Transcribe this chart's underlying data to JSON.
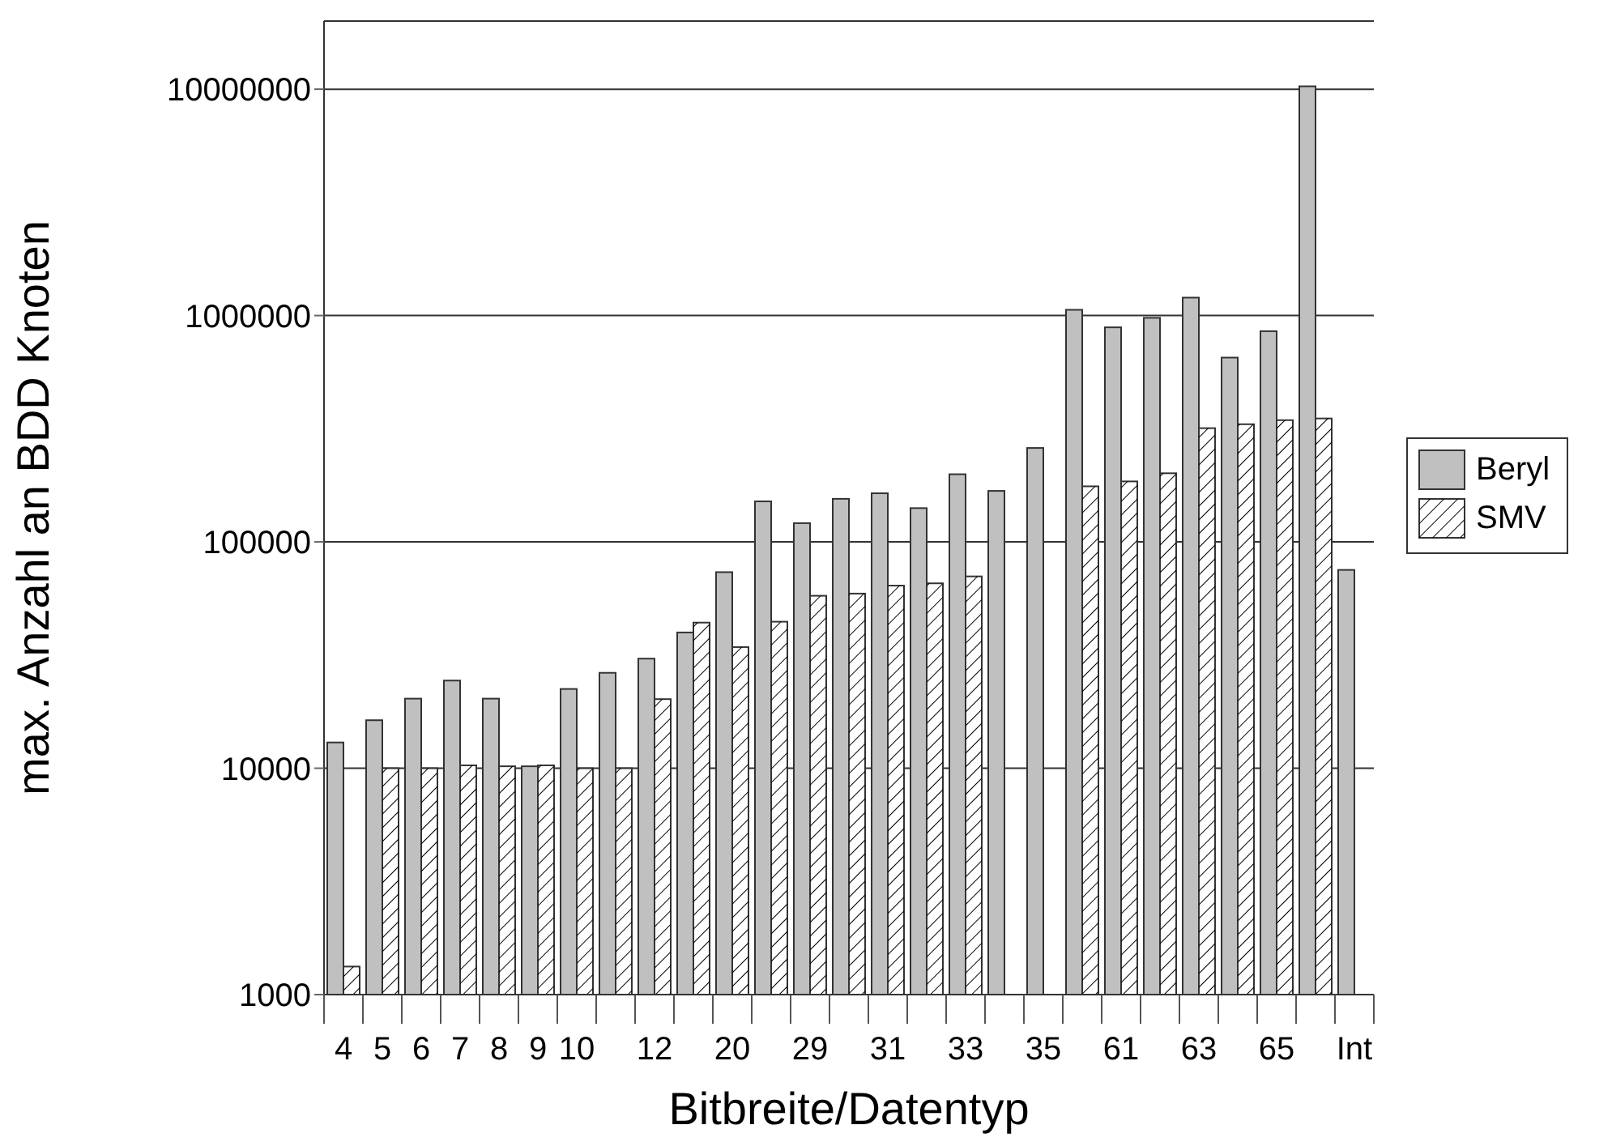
{
  "chart_data": {
    "type": "bar",
    "xlabel": "Bitbreite/Datentyp",
    "ylabel": "max. Anzahl an BDD Knoten",
    "categories": [
      "4",
      "5",
      "6",
      "7",
      "8",
      "9",
      "10",
      null,
      "12",
      null,
      "20",
      null,
      "29",
      null,
      "31",
      null,
      "33",
      null,
      "35",
      null,
      "61",
      null,
      "63",
      null,
      "65",
      null,
      "Int"
    ],
    "series": [
      {
        "name": "Beryl",
        "color": "#c0c0c0",
        "values": [
          13000,
          16300,
          20300,
          24400,
          20300,
          10200,
          22400,
          26400,
          30500,
          39800,
          73500,
          151000,
          121000,
          155000,
          164000,
          141000,
          199000,
          168000,
          260000,
          1060000,
          887000,
          977000,
          1200000,
          652000,
          853000,
          10300000,
          75200
        ]
      },
      {
        "name": "SMV",
        "color": "#ffffff",
        "values": [
          1330,
          10000,
          10000,
          10300,
          10200,
          10300,
          10000,
          10000,
          20200,
          44000,
          34300,
          44400,
          57800,
          59100,
          64100,
          65600,
          70400,
          null,
          null,
          176000,
          185000,
          201000,
          318000,
          331000,
          345000,
          351000,
          null
        ]
      }
    ],
    "log": "y",
    "ylim": [
      1000,
      20000000
    ],
    "yticks": [
      1000,
      10000,
      100000,
      1000000,
      10000000
    ],
    "grid": "y",
    "legend": "right"
  }
}
